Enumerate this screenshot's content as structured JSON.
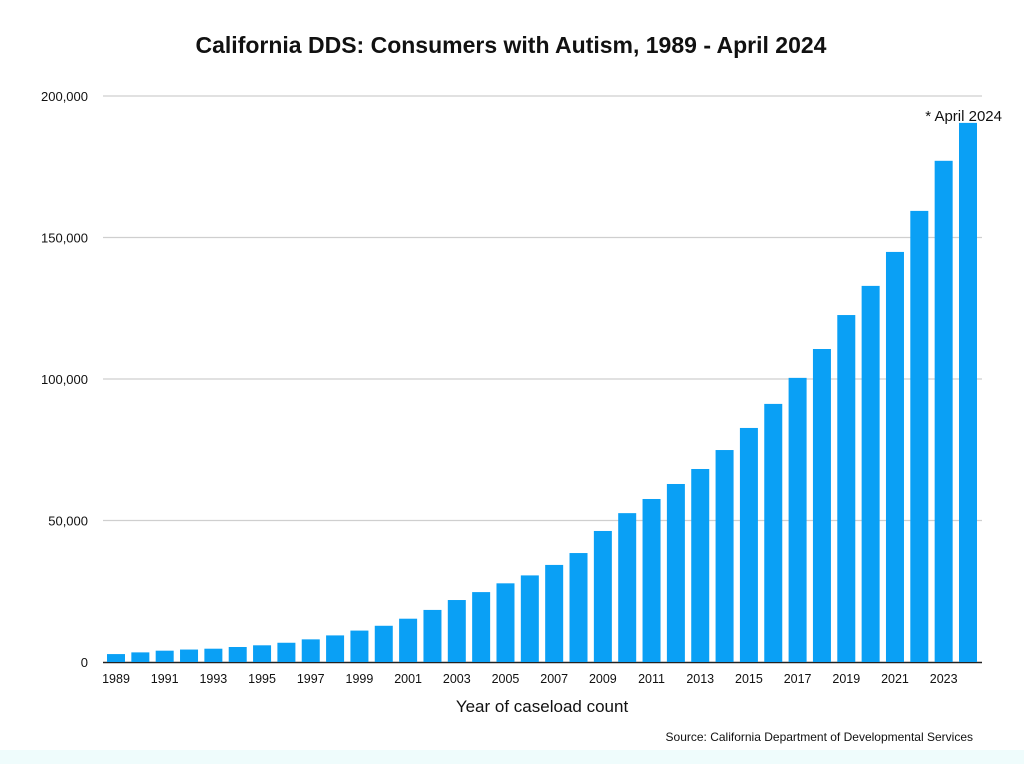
{
  "chart_data": {
    "type": "bar",
    "title": "California DDS: Consumers with Autism, 1989 - April 2024",
    "xlabel": "Year of caseload count",
    "ylabel": "",
    "ylim": [
      0,
      200000
    ],
    "yticks": [
      0,
      50000,
      100000,
      150000,
      200000
    ],
    "ytick_labels": [
      "0",
      "50,000",
      "100,000",
      "150,000",
      "200,000"
    ],
    "grid": true,
    "legend": "none",
    "bar_color": "#0aa0f5",
    "annotation": "* April 2024",
    "source": "Source: California Department of Developmental Services",
    "categories": [
      "1989",
      "1990",
      "1991",
      "1992",
      "1993",
      "1994",
      "1995",
      "1996",
      "1997",
      "1998",
      "1999",
      "2000",
      "2001",
      "2002",
      "2003",
      "2004",
      "2005",
      "2006",
      "2007",
      "2008",
      "2009",
      "2010",
      "2011",
      "2012",
      "2013",
      "2014",
      "2015",
      "2016",
      "2017",
      "2018",
      "2019",
      "2020",
      "2021",
      "2022",
      "2023",
      "2024"
    ],
    "xtick_labels": [
      "1989",
      "1991",
      "1993",
      "1995",
      "1997",
      "1999",
      "2001",
      "2003",
      "2005",
      "2007",
      "2009",
      "2011",
      "2013",
      "2015",
      "2017",
      "2019",
      "2021",
      "2023"
    ],
    "values": [
      2800,
      3400,
      4000,
      4400,
      4700,
      5300,
      5900,
      6800,
      8000,
      9400,
      11100,
      12800,
      15300,
      18400,
      21900,
      24700,
      27800,
      30600,
      34300,
      38500,
      46300,
      52600,
      57600,
      62900,
      68200,
      74900,
      82700,
      91200,
      100400,
      110600,
      122600,
      132900,
      144900,
      159400,
      177100,
      190500
    ]
  }
}
